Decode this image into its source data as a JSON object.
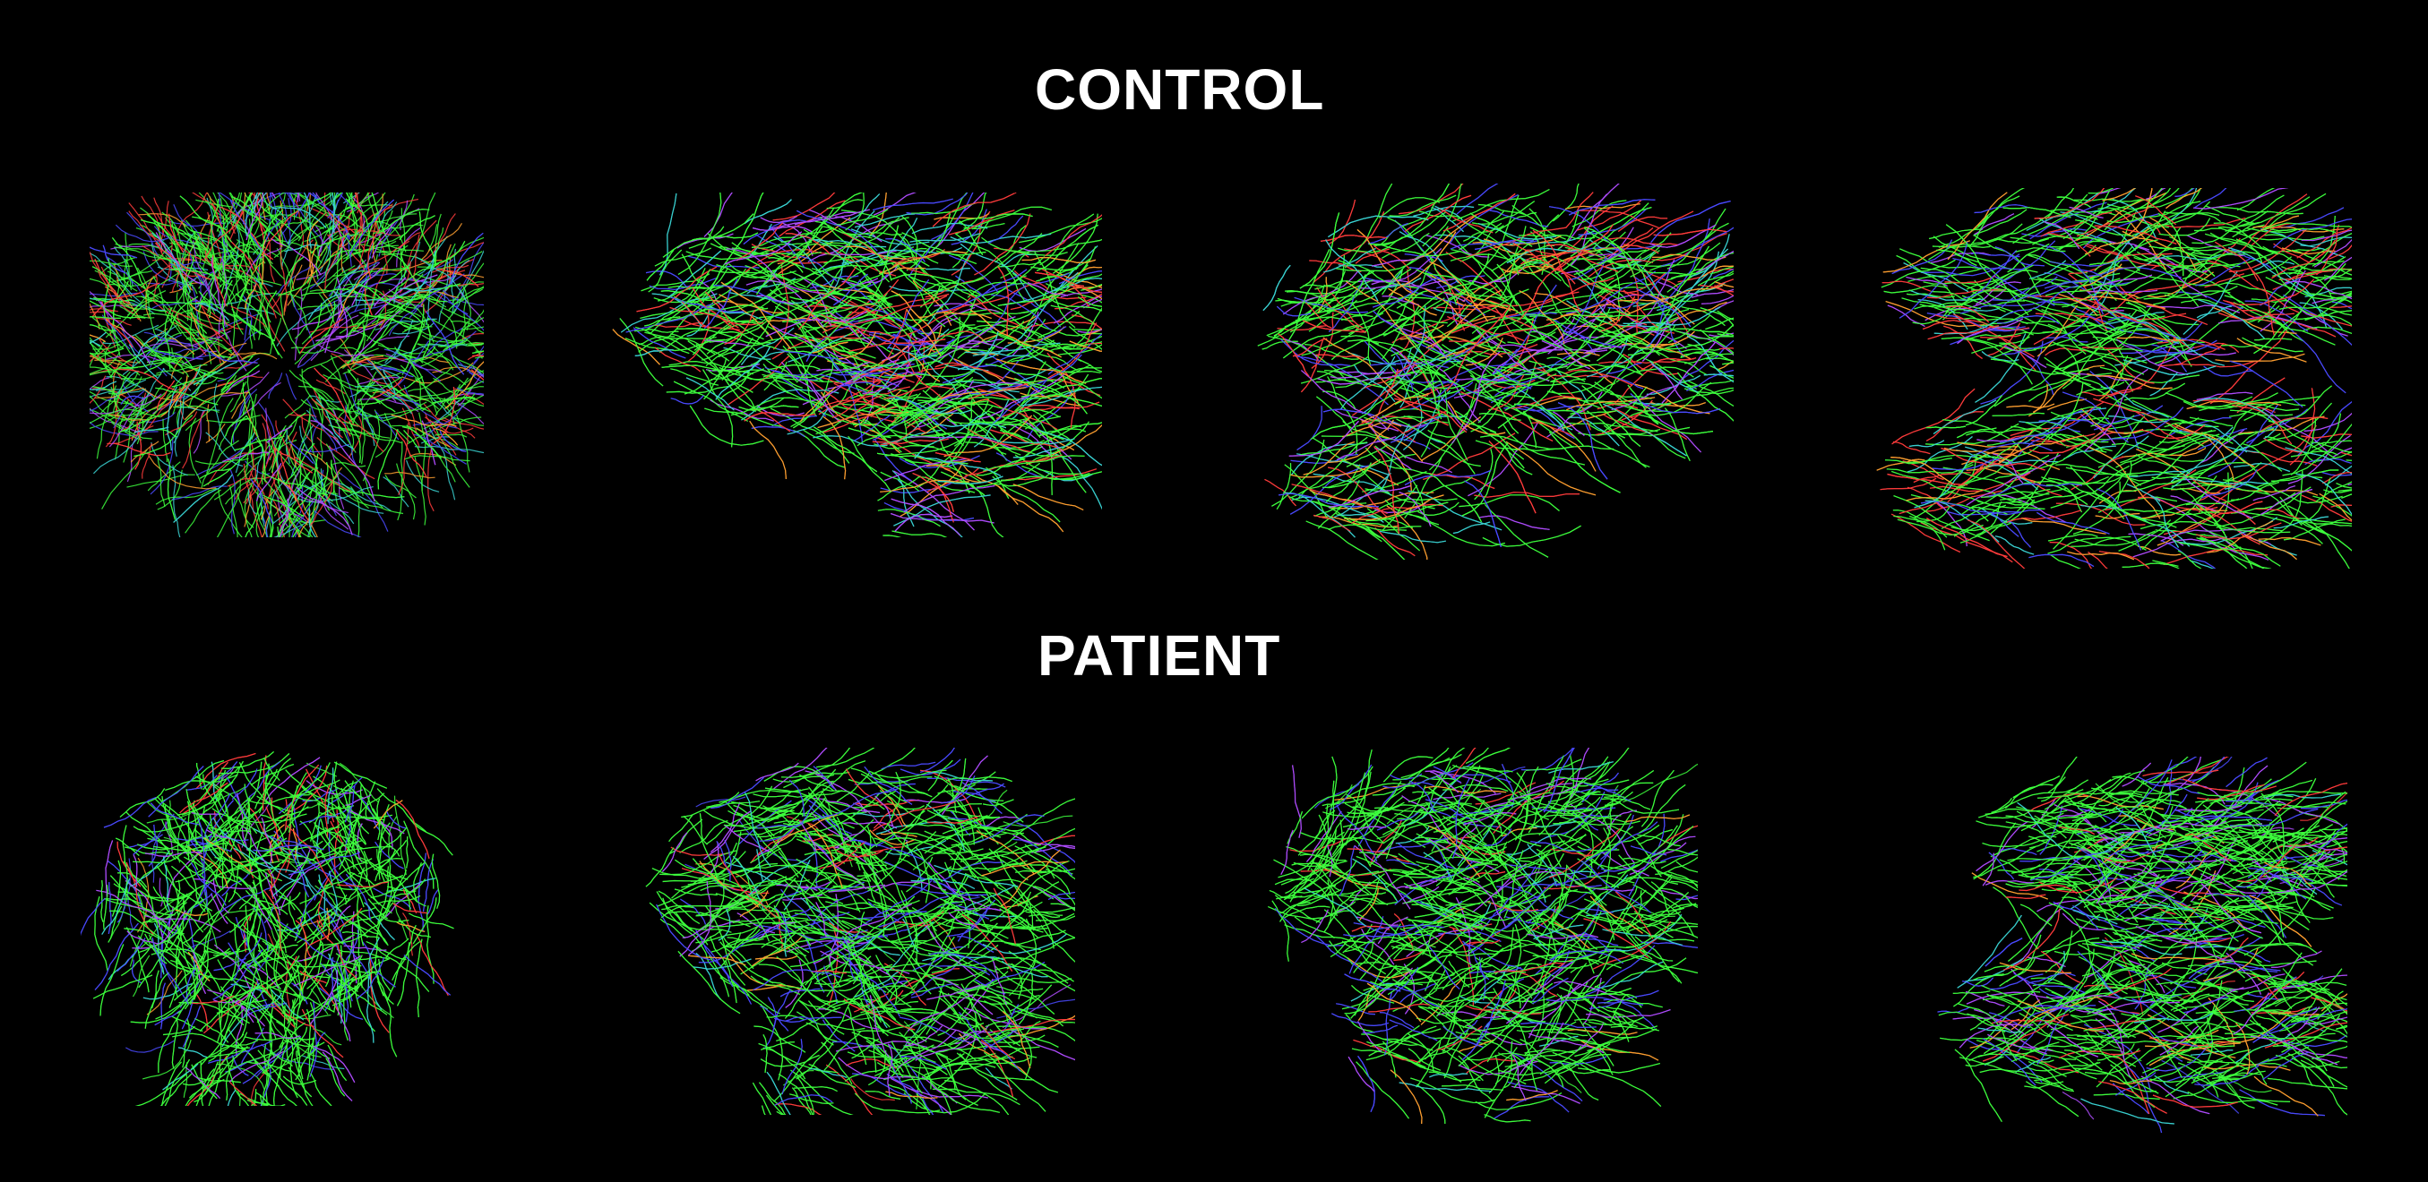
{
  "titles": {
    "control": "CONTROL",
    "patient": "PATIENT"
  },
  "colors": {
    "background": "#000000",
    "text": "#ffffff",
    "fiber_green": "#3dff3d",
    "fiber_red": "#ff3c3c",
    "fiber_blue": "#4a4aff",
    "fiber_purple": "#b04cff",
    "fiber_cyan": "#3ad2d2",
    "fiber_orange": "#ffa030"
  },
  "rows": [
    {
      "label_key": "control",
      "views": [
        "coronal",
        "sagittal-left",
        "sagittal-right",
        "axial"
      ]
    },
    {
      "label_key": "patient",
      "views": [
        "coronal",
        "sagittal-left",
        "sagittal-right",
        "axial"
      ]
    }
  ]
}
